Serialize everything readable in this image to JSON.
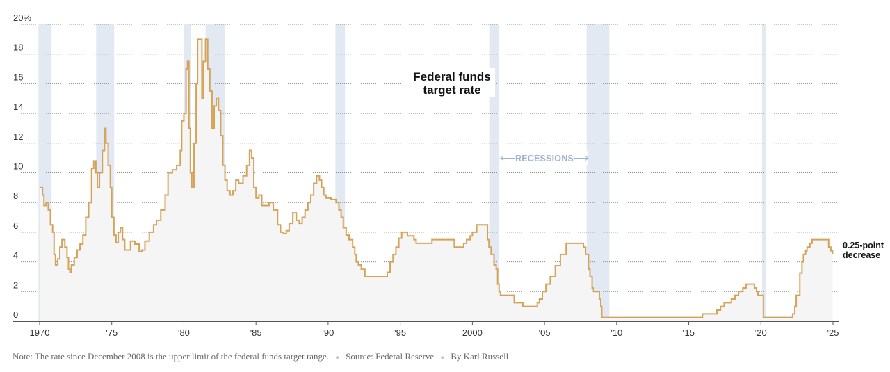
{
  "chart_data": {
    "type": "line",
    "title_lines": [
      "Federal funds",
      "target rate"
    ],
    "y_ticks": [
      "20%",
      "18",
      "16",
      "14",
      "12",
      "10",
      "8",
      "6",
      "4",
      "2",
      "0"
    ],
    "x_ticks": [
      "1970",
      "'75",
      "'80",
      "'85",
      "'90",
      "'95",
      "2000",
      "'05",
      "'10",
      "'15",
      "'20",
      "'25"
    ],
    "ylim": [
      0,
      20
    ],
    "xlim": [
      1970.0,
      2025.0
    ],
    "grid": true,
    "end_annotation": [
      "0.25-point",
      "decrease"
    ],
    "recession_label": "RECESSIONS",
    "recessions": [
      [
        1969.92,
        1970.83
      ],
      [
        1973.92,
        1975.17
      ],
      [
        1980.0,
        1980.5
      ],
      [
        1981.5,
        1982.83
      ],
      [
        1990.5,
        1991.17
      ],
      [
        2001.17,
        2001.83
      ],
      [
        2007.92,
        2009.5
      ],
      [
        2020.08,
        2020.33
      ]
    ],
    "series": [
      {
        "values": [
          [
            1970.0,
            9.0
          ],
          [
            1970.2,
            8.5
          ],
          [
            1970.3,
            7.8
          ],
          [
            1970.45,
            8.0
          ],
          [
            1970.6,
            7.5
          ],
          [
            1970.75,
            6.5
          ],
          [
            1970.9,
            6.0
          ],
          [
            1971.0,
            4.5
          ],
          [
            1971.1,
            3.8
          ],
          [
            1971.25,
            4.2
          ],
          [
            1971.4,
            5.0
          ],
          [
            1971.55,
            5.5
          ],
          [
            1971.75,
            5.0
          ],
          [
            1971.9,
            4.3
          ],
          [
            1972.0,
            3.5
          ],
          [
            1972.1,
            3.3
          ],
          [
            1972.2,
            3.8
          ],
          [
            1972.4,
            4.3
          ],
          [
            1972.6,
            4.8
          ],
          [
            1972.8,
            5.2
          ],
          [
            1973.0,
            5.8
          ],
          [
            1973.2,
            7.0
          ],
          [
            1973.4,
            8.0
          ],
          [
            1973.6,
            10.3
          ],
          [
            1973.75,
            10.8
          ],
          [
            1973.9,
            10.0
          ],
          [
            1974.0,
            9.0
          ],
          [
            1974.15,
            10.0
          ],
          [
            1974.35,
            11.5
          ],
          [
            1974.5,
            13.0
          ],
          [
            1974.6,
            12.0
          ],
          [
            1974.75,
            10.5
          ],
          [
            1974.9,
            9.0
          ],
          [
            1975.0,
            7.0
          ],
          [
            1975.15,
            5.8
          ],
          [
            1975.3,
            5.3
          ],
          [
            1975.45,
            6.0
          ],
          [
            1975.6,
            6.3
          ],
          [
            1975.75,
            5.5
          ],
          [
            1975.9,
            4.8
          ],
          [
            1976.1,
            4.8
          ],
          [
            1976.3,
            5.4
          ],
          [
            1976.6,
            5.2
          ],
          [
            1976.9,
            4.7
          ],
          [
            1977.1,
            4.8
          ],
          [
            1977.3,
            5.4
          ],
          [
            1977.6,
            6.0
          ],
          [
            1977.9,
            6.5
          ],
          [
            1978.1,
            6.8
          ],
          [
            1978.4,
            7.5
          ],
          [
            1978.7,
            8.5
          ],
          [
            1978.9,
            10.0
          ],
          [
            1979.2,
            10.2
          ],
          [
            1979.5,
            10.5
          ],
          [
            1979.75,
            11.5
          ],
          [
            1979.85,
            13.5
          ],
          [
            1980.0,
            14.0
          ],
          [
            1980.15,
            17.0
          ],
          [
            1980.25,
            17.5
          ],
          [
            1980.35,
            13.0
          ],
          [
            1980.45,
            10.0
          ],
          [
            1980.55,
            9.0
          ],
          [
            1980.7,
            12.0
          ],
          [
            1980.85,
            16.0
          ],
          [
            1980.95,
            19.0
          ],
          [
            1981.1,
            19.0
          ],
          [
            1981.25,
            15.0
          ],
          [
            1981.35,
            17.5
          ],
          [
            1981.5,
            19.0
          ],
          [
            1981.65,
            17.0
          ],
          [
            1981.8,
            15.5
          ],
          [
            1981.95,
            13.0
          ],
          [
            1982.1,
            14.5
          ],
          [
            1982.25,
            15.0
          ],
          [
            1982.4,
            14.2
          ],
          [
            1982.55,
            12.5
          ],
          [
            1982.7,
            10.5
          ],
          [
            1982.85,
            9.5
          ],
          [
            1983.0,
            8.8
          ],
          [
            1983.2,
            8.5
          ],
          [
            1983.4,
            8.8
          ],
          [
            1983.6,
            9.5
          ],
          [
            1983.8,
            9.3
          ],
          [
            1984.1,
            9.8
          ],
          [
            1984.35,
            10.5
          ],
          [
            1984.55,
            11.5
          ],
          [
            1984.7,
            11.0
          ],
          [
            1984.85,
            9.0
          ],
          [
            1985.0,
            8.3
          ],
          [
            1985.2,
            8.5
          ],
          [
            1985.4,
            7.8
          ],
          [
            1985.7,
            7.8
          ],
          [
            1985.9,
            8.0
          ],
          [
            1986.2,
            7.5
          ],
          [
            1986.5,
            6.5
          ],
          [
            1986.7,
            6.0
          ],
          [
            1986.9,
            5.9
          ],
          [
            1987.1,
            6.1
          ],
          [
            1987.3,
            6.6
          ],
          [
            1987.55,
            7.3
          ],
          [
            1987.8,
            6.8
          ],
          [
            1988.0,
            6.6
          ],
          [
            1988.2,
            7.0
          ],
          [
            1988.4,
            7.5
          ],
          [
            1988.6,
            8.0
          ],
          [
            1988.8,
            8.5
          ],
          [
            1989.0,
            9.3
          ],
          [
            1989.2,
            9.8
          ],
          [
            1989.4,
            9.5
          ],
          [
            1989.55,
            9.0
          ],
          [
            1989.7,
            8.5
          ],
          [
            1989.85,
            8.3
          ],
          [
            1990.2,
            8.2
          ],
          [
            1990.55,
            8.0
          ],
          [
            1990.75,
            7.5
          ],
          [
            1990.9,
            7.0
          ],
          [
            1991.05,
            6.3
          ],
          [
            1991.25,
            5.8
          ],
          [
            1991.45,
            5.5
          ],
          [
            1991.7,
            5.0
          ],
          [
            1991.85,
            4.5
          ],
          [
            1991.95,
            4.0
          ],
          [
            1992.1,
            3.8
          ],
          [
            1992.3,
            3.5
          ],
          [
            1992.55,
            3.0
          ],
          [
            1993.5,
            3.0
          ],
          [
            1994.1,
            3.3
          ],
          [
            1994.3,
            4.0
          ],
          [
            1994.5,
            4.5
          ],
          [
            1994.7,
            5.0
          ],
          [
            1994.9,
            5.6
          ],
          [
            1995.1,
            6.0
          ],
          [
            1995.5,
            5.75
          ],
          [
            1995.95,
            5.5
          ],
          [
            1996.1,
            5.25
          ],
          [
            1997.2,
            5.5
          ],
          [
            1998.75,
            5.0
          ],
          [
            1999.4,
            5.25
          ],
          [
            1999.6,
            5.5
          ],
          [
            1999.85,
            5.75
          ],
          [
            2000.0,
            6.0
          ],
          [
            2000.3,
            6.5
          ],
          [
            2000.9,
            6.5
          ],
          [
            2001.05,
            5.5
          ],
          [
            2001.15,
            5.0
          ],
          [
            2001.3,
            4.5
          ],
          [
            2001.5,
            3.8
          ],
          [
            2001.65,
            3.5
          ],
          [
            2001.75,
            2.5
          ],
          [
            2001.85,
            2.0
          ],
          [
            2001.95,
            1.75
          ],
          [
            2002.9,
            1.25
          ],
          [
            2003.5,
            1.0
          ],
          [
            2004.5,
            1.25
          ],
          [
            2004.65,
            1.5
          ],
          [
            2004.85,
            2.0
          ],
          [
            2005.1,
            2.5
          ],
          [
            2005.4,
            3.0
          ],
          [
            2005.75,
            3.75
          ],
          [
            2006.1,
            4.5
          ],
          [
            2006.5,
            5.25
          ],
          [
            2007.7,
            5.0
          ],
          [
            2007.85,
            4.5
          ],
          [
            2008.05,
            3.5
          ],
          [
            2008.15,
            3.0
          ],
          [
            2008.3,
            2.25
          ],
          [
            2008.4,
            2.0
          ],
          [
            2008.8,
            1.5
          ],
          [
            2008.9,
            1.0
          ],
          [
            2008.97,
            0.25
          ],
          [
            2015.95,
            0.5
          ],
          [
            2016.95,
            0.75
          ],
          [
            2017.2,
            1.0
          ],
          [
            2017.45,
            1.25
          ],
          [
            2017.95,
            1.5
          ],
          [
            2018.2,
            1.75
          ],
          [
            2018.45,
            2.0
          ],
          [
            2018.75,
            2.25
          ],
          [
            2018.97,
            2.5
          ],
          [
            2019.55,
            2.25
          ],
          [
            2019.7,
            2.0
          ],
          [
            2019.8,
            1.75
          ],
          [
            2020.17,
            0.25
          ],
          [
            2022.2,
            0.5
          ],
          [
            2022.35,
            1.0
          ],
          [
            2022.45,
            1.75
          ],
          [
            2022.7,
            3.25
          ],
          [
            2022.85,
            4.0
          ],
          [
            2022.95,
            4.5
          ],
          [
            2023.1,
            4.75
          ],
          [
            2023.2,
            5.0
          ],
          [
            2023.4,
            5.25
          ],
          [
            2023.55,
            5.5
          ],
          [
            2024.7,
            5.0
          ],
          [
            2024.85,
            4.75
          ],
          [
            2024.97,
            4.5
          ]
        ]
      }
    ]
  },
  "footer": {
    "note": "Note: The rate since December 2008 is the upper limit of the federal funds target range.",
    "source": "Source: Federal Reserve",
    "byline": "By Karl Russell"
  },
  "colors": {
    "line": "#d4a35a",
    "area": "#f5f5f5",
    "recession": "#e3e9f2",
    "recession_text": "#9fb4cf"
  }
}
